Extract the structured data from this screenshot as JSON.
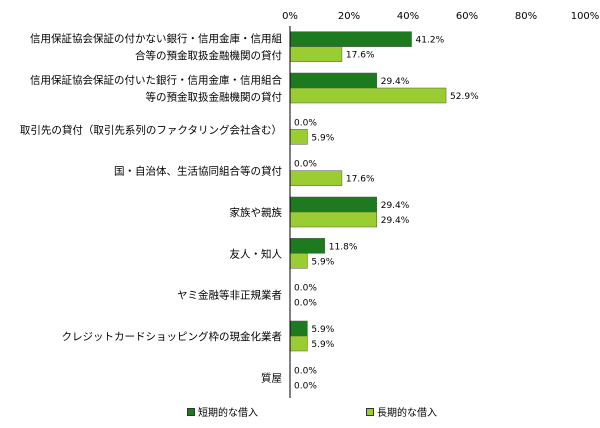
{
  "chart_data": {
    "type": "bar",
    "orientation": "horizontal",
    "title": "",
    "xlabel": "",
    "ylabel": "",
    "xlim": [
      0,
      100
    ],
    "x_ticks": [
      "0%",
      "20%",
      "40%",
      "60%",
      "80%",
      "100%"
    ],
    "grid": false,
    "legend_position": "bottom",
    "categories": [
      [
        "信用保証協会保証の付かない銀行・信用金庫・信用組",
        "合等の預金取扱金融機関の貸付"
      ],
      [
        "信用保証協会保証の付いた銀行・信用金庫・信用組合",
        "等の預金取扱金融機関の貸付"
      ],
      [
        "取引先の貸付（取引先系列のファクタリング会社含む）"
      ],
      [
        "国・自治体、生活協同組合等の貸付"
      ],
      [
        "家族や親族"
      ],
      [
        "友人・知人"
      ],
      [
        "ヤミ金融等非正規業者"
      ],
      [
        "クレジットカードショッピング枠の現金化業者"
      ],
      [
        "質屋"
      ]
    ],
    "series": [
      {
        "name": "短期的な借入",
        "color": "#1e7a1e",
        "values": [
          41.2,
          29.4,
          0.0,
          0.0,
          29.4,
          11.8,
          0.0,
          5.9,
          0.0
        ],
        "labels": [
          "41.2%",
          "29.4%",
          "0.0%",
          "0.0%",
          "29.4%",
          "11.8%",
          "0.0%",
          "5.9%",
          "0.0%"
        ]
      },
      {
        "name": "長期的な借入",
        "color": "#9acd32",
        "values": [
          17.6,
          52.9,
          5.9,
          17.6,
          29.4,
          5.9,
          0.0,
          5.9,
          0.0
        ],
        "labels": [
          "17.6%",
          "52.9%",
          "5.9%",
          "17.6%",
          "29.4%",
          "5.9%",
          "0.0%",
          "5.9%",
          "0.0%"
        ]
      }
    ]
  }
}
